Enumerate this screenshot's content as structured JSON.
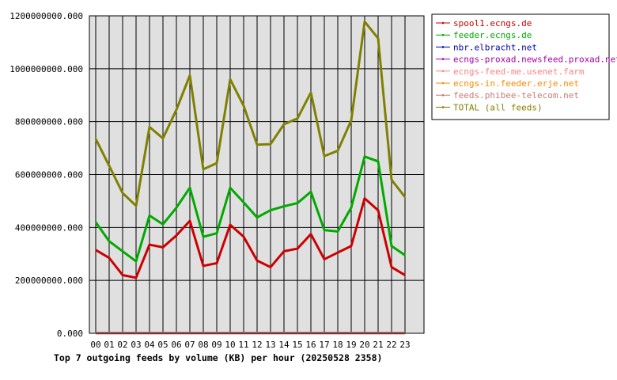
{
  "chart_data": {
    "type": "line",
    "title": "Top 7 outgoing feeds by volume (KB) per hour (20250528 2358)",
    "x": [
      "00",
      "01",
      "02",
      "03",
      "04",
      "05",
      "06",
      "07",
      "08",
      "09",
      "10",
      "11",
      "12",
      "13",
      "14",
      "15",
      "16",
      "17",
      "18",
      "19",
      "20",
      "21",
      "22",
      "23"
    ],
    "ylim": [
      0,
      1200000000
    ],
    "yticks": [
      0,
      200000000,
      400000000,
      600000000,
      800000000,
      1000000000,
      1200000000
    ],
    "ytick_labels": [
      "0.000",
      "200000000.000",
      "400000000.000",
      "600000000.000",
      "800000000.000",
      "1000000000.000",
      "1200000000.000"
    ],
    "grid": true,
    "legend_position": "right",
    "plot_background": "#e0e0e0",
    "series": [
      {
        "name": "spool1.ecngs.de",
        "color": "#cc0000",
        "values": [
          315000000,
          285000000,
          220000000,
          210000000,
          335000000,
          325000000,
          370000000,
          425000000,
          255000000,
          265000000,
          410000000,
          365000000,
          275000000,
          250000000,
          310000000,
          320000000,
          375000000,
          280000000,
          305000000,
          330000000,
          510000000,
          465000000,
          250000000,
          220000000
        ]
      },
      {
        "name": "feeder.ecngs.de",
        "color": "#00aa00",
        "values": [
          420000000,
          348000000,
          310000000,
          272000000,
          445000000,
          412000000,
          475000000,
          550000000,
          365000000,
          378000000,
          550000000,
          495000000,
          438000000,
          465000000,
          480000000,
          492000000,
          535000000,
          390000000,
          385000000,
          475000000,
          668000000,
          650000000,
          330000000,
          295000000
        ]
      },
      {
        "name": "nbr.elbracht.net",
        "color": "#0000aa",
        "values": [
          1000000,
          1000000,
          1000000,
          1000000,
          1000000,
          1000000,
          1000000,
          1000000,
          1000000,
          1000000,
          1000000,
          1000000,
          1000000,
          1000000,
          1000000,
          1000000,
          1000000,
          1000000,
          1000000,
          1000000,
          1000000,
          1000000,
          1000000,
          1000000
        ]
      },
      {
        "name": "ecngs-proxad.newsfeed.proxad.net",
        "color": "#aa00aa",
        "values": [
          1000000,
          1000000,
          1000000,
          1000000,
          1000000,
          1000000,
          1000000,
          1000000,
          1000000,
          1000000,
          1000000,
          1000000,
          1000000,
          1000000,
          1000000,
          1000000,
          1000000,
          1000000,
          1000000,
          1000000,
          1000000,
          1000000,
          1000000,
          1000000
        ]
      },
      {
        "name": "ecngs-feed-me.usenet.farm",
        "color": "#ff8080",
        "values": [
          1000000,
          1000000,
          1000000,
          1000000,
          1000000,
          1000000,
          1000000,
          1000000,
          1000000,
          1000000,
          1000000,
          1000000,
          1000000,
          1000000,
          1000000,
          1000000,
          1000000,
          1000000,
          1000000,
          1000000,
          1000000,
          1000000,
          1000000,
          1000000
        ]
      },
      {
        "name": "ecngs-in.feeder.erje.net",
        "color": "#ff8800",
        "values": [
          1000000,
          1000000,
          1000000,
          1000000,
          1000000,
          1000000,
          1000000,
          1000000,
          1000000,
          1000000,
          1000000,
          1000000,
          1000000,
          1000000,
          1000000,
          1000000,
          1000000,
          1000000,
          1000000,
          1000000,
          1000000,
          1000000,
          1000000,
          1000000
        ]
      },
      {
        "name": "feeds.phibee-telecom.net",
        "color": "#cc7777",
        "values": [
          1000000,
          1000000,
          1000000,
          1000000,
          1000000,
          1000000,
          1000000,
          1000000,
          1000000,
          1000000,
          1000000,
          1000000,
          1000000,
          1000000,
          1000000,
          1000000,
          1000000,
          1000000,
          1000000,
          1000000,
          1000000,
          1000000,
          1000000,
          1000000
        ]
      },
      {
        "name": "TOTAL (all feeds)",
        "color": "#808000",
        "values": [
          735000000,
          633000000,
          530000000,
          482000000,
          780000000,
          737000000,
          845000000,
          975000000,
          620000000,
          643000000,
          960000000,
          860000000,
          713000000,
          715000000,
          790000000,
          812000000,
          910000000,
          670000000,
          690000000,
          805000000,
          1178000000,
          1115000000,
          580000000,
          515000000
        ]
      }
    ]
  }
}
